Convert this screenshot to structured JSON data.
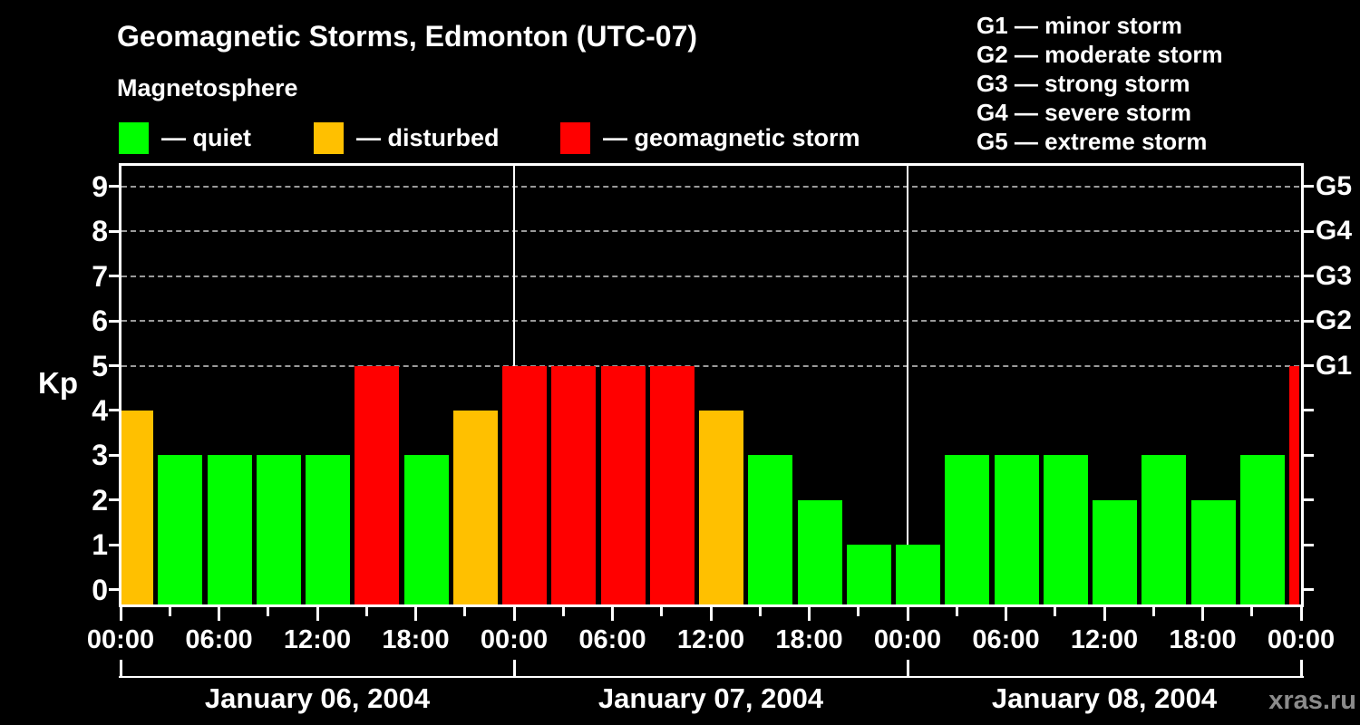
{
  "page": {
    "background": "#000000",
    "watermark": "xras.ru"
  },
  "header": {
    "title": "Geomagnetic Storms, Edmonton (UTC-07)",
    "subtitle": "Magnetosphere",
    "condition_legend": [
      {
        "label": "— quiet",
        "color": "#00FF00"
      },
      {
        "label": "— disturbed",
        "color": "#FFC000"
      },
      {
        "label": "— geomagnetic storm",
        "color": "#FF0000"
      }
    ],
    "storm_scale_legend": [
      "G1 — minor storm",
      "G2 — moderate storm",
      "G3 — strong storm",
      "G4 — severe storm",
      "G5 — extreme storm"
    ]
  },
  "chart_data": {
    "type": "bar",
    "title": "Geomagnetic Storms, Edmonton (UTC-07)",
    "ylabel": "Kp",
    "ylim": [
      0,
      9.5
    ],
    "y_ticks": [
      0,
      1,
      2,
      3,
      4,
      5,
      6,
      7,
      8,
      9
    ],
    "gridlines_at_kp": [
      5,
      6,
      7,
      8,
      9
    ],
    "grid_style": "dashed",
    "x_tick_interval_hours": 3,
    "x_tick_labels_6h": [
      "00:00",
      "06:00",
      "12:00",
      "18:00",
      "00:00",
      "06:00",
      "12:00",
      "18:00",
      "00:00",
      "06:00",
      "12:00",
      "18:00",
      "00:00"
    ],
    "right_axis_labels": [
      {
        "kp": 5,
        "label": "G1"
      },
      {
        "kp": 6,
        "label": "G2"
      },
      {
        "kp": 7,
        "label": "G3"
      },
      {
        "kp": 8,
        "label": "G4"
      },
      {
        "kp": 9,
        "label": "G5"
      }
    ],
    "color_rule": {
      "kp_0_to_3": "#00FF00",
      "kp_4": "#FFC000",
      "kp_5_plus": "#FF0000"
    },
    "days": [
      {
        "label": "January 06, 2004",
        "values_3h": [
          4,
          3,
          3,
          3,
          3,
          5,
          3,
          4
        ]
      },
      {
        "label": "January 07, 2004",
        "values_3h": [
          5,
          5,
          5,
          5,
          4,
          3,
          2,
          1
        ]
      },
      {
        "label": "January 08, 2004",
        "values_3h": [
          1,
          3,
          3,
          3,
          2,
          3,
          2,
          3
        ]
      }
    ],
    "trailing_partial_bar_kp": 5,
    "legend_position": "top"
  }
}
